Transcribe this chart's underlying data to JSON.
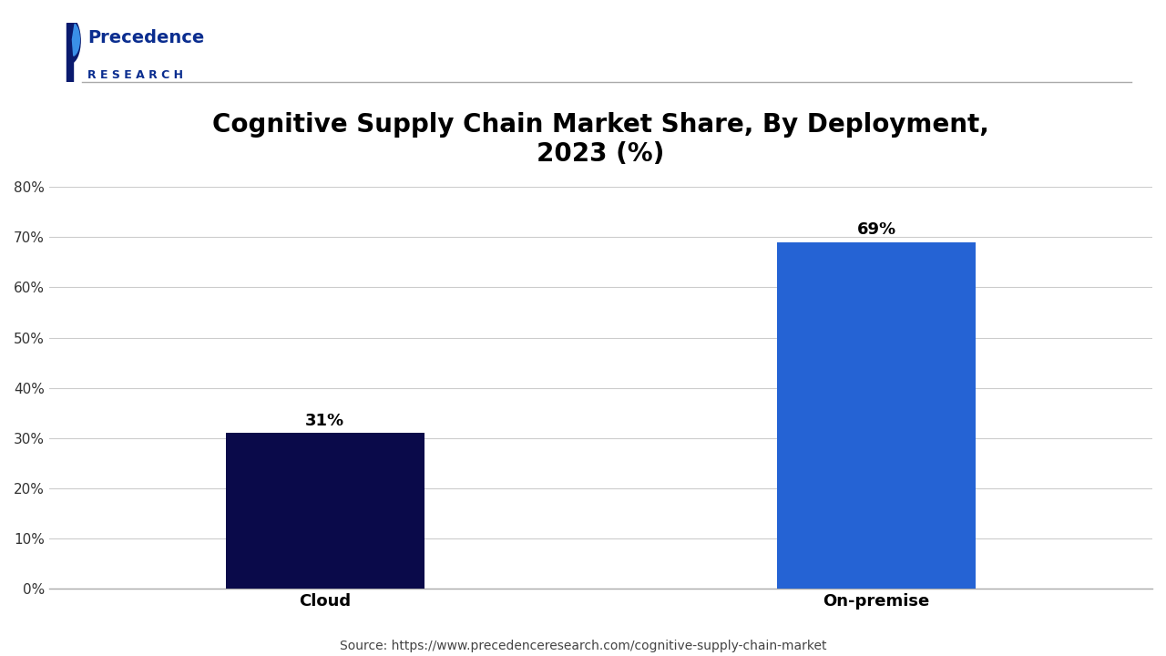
{
  "title": "Cognitive Supply Chain Market Share, By Deployment,\n2023 (%)",
  "categories": [
    "Cloud",
    "On-premise"
  ],
  "values": [
    31,
    69
  ],
  "labels": [
    "31%",
    "69%"
  ],
  "bar_colors": [
    "#0a0a4a",
    "#2563d4"
  ],
  "ylim": [
    0,
    80
  ],
  "yticks": [
    0,
    10,
    20,
    30,
    40,
    50,
    60,
    70,
    80
  ],
  "ytick_labels": [
    "0%",
    "10%",
    "20%",
    "30%",
    "40%",
    "50%",
    "60%",
    "70%",
    "80%"
  ],
  "background_color": "#ffffff",
  "title_fontsize": 20,
  "xlabel_fontsize": 13,
  "ylabel_fontsize": 11,
  "bar_label_fontsize": 13,
  "source_text": "Source: https://www.precedenceresearch.com/cognitive-supply-chain-market",
  "grid_color": "#cccccc",
  "title_color": "#000000",
  "label_color": "#000000",
  "source_fontsize": 10,
  "logo_text_line1": "Precedence",
  "logo_text_line2": "RESEARCH",
  "logo_color": "#0a2d8f"
}
